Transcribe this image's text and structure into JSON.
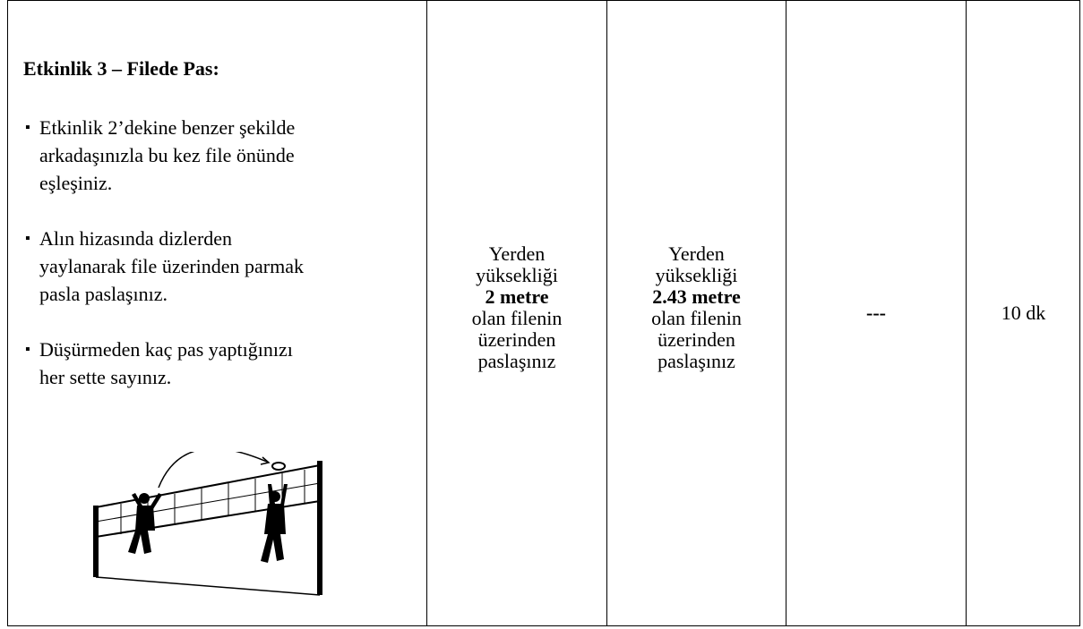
{
  "activity": {
    "title": "Etkinlik 3 – Filede Pas:",
    "bullets": [
      [
        "Etkinlik 2’dekine benzer şekilde",
        "arkadaşınızla bu kez file önünde",
        "eşleşiniz."
      ],
      [
        "Alın hizasında dizlerden",
        "yaylanarak file üzerinden parmak",
        "pasla paslaşınız."
      ],
      [
        "Düşürmeden kaç pas yaptığınızı",
        "her sette sayınız."
      ]
    ]
  },
  "level_1": {
    "before": [
      "Yerden",
      "yüksekliği"
    ],
    "bold": "2 metre",
    "after": [
      "olan filenin",
      "üzerinden",
      "paslaşınız"
    ]
  },
  "level_2": {
    "before": [
      "Yerden",
      "yüksekliği"
    ],
    "bold": "2.43 metre",
    "after": [
      "olan filenin",
      "üzerinden",
      "paslaşınız"
    ]
  },
  "level_3": "---",
  "duration": "10 dk"
}
